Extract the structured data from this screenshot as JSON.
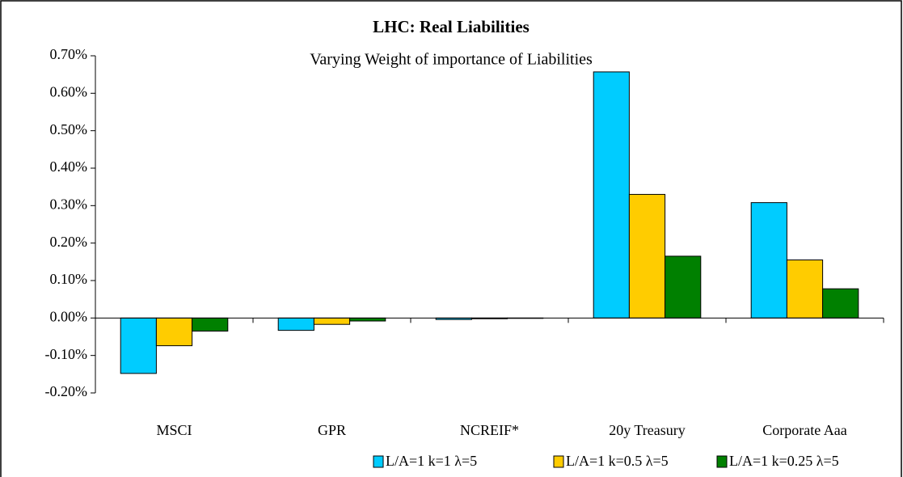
{
  "chart_data": {
    "type": "bar",
    "title": "LHC: Real Liabilities",
    "subtitle": "Varying Weight of importance of Liabilities",
    "categories": [
      "MSCI",
      "GPR",
      "NCREIF*",
      "20y Treasury",
      "Corporate Aaa"
    ],
    "series": [
      {
        "name": "L/A=1 k=1 λ=5",
        "color": "#00ccff",
        "values": [
          -0.148,
          -0.033,
          -0.004,
          0.657,
          0.308
        ]
      },
      {
        "name": "L/A=1 k=0.5 λ=5",
        "color": "#ffcc00",
        "values": [
          -0.074,
          -0.017,
          -0.002,
          0.33,
          0.155
        ]
      },
      {
        "name": "L/A=1 k=0.25 λ=5",
        "color": "#008000",
        "values": [
          -0.035,
          -0.008,
          -0.001,
          0.165,
          0.078
        ]
      }
    ],
    "ylim": [
      -0.2,
      0.7
    ],
    "yticks": [
      {
        "value": -0.2,
        "label": "-0.20%"
      },
      {
        "value": -0.1,
        "label": "-0.10%"
      },
      {
        "value": 0,
        "label": "0.00%"
      },
      {
        "value": 0.1,
        "label": "0.10%"
      },
      {
        "value": 0.2,
        "label": "0.20%"
      },
      {
        "value": 0.3,
        "label": "0.30%"
      },
      {
        "value": 0.4,
        "label": "0.40%"
      },
      {
        "value": 0.5,
        "label": "0.50%"
      },
      {
        "value": 0.6,
        "label": "0.60%"
      },
      {
        "value": 0.7,
        "label": "0.70%"
      }
    ],
    "legend": "bottom-right"
  }
}
